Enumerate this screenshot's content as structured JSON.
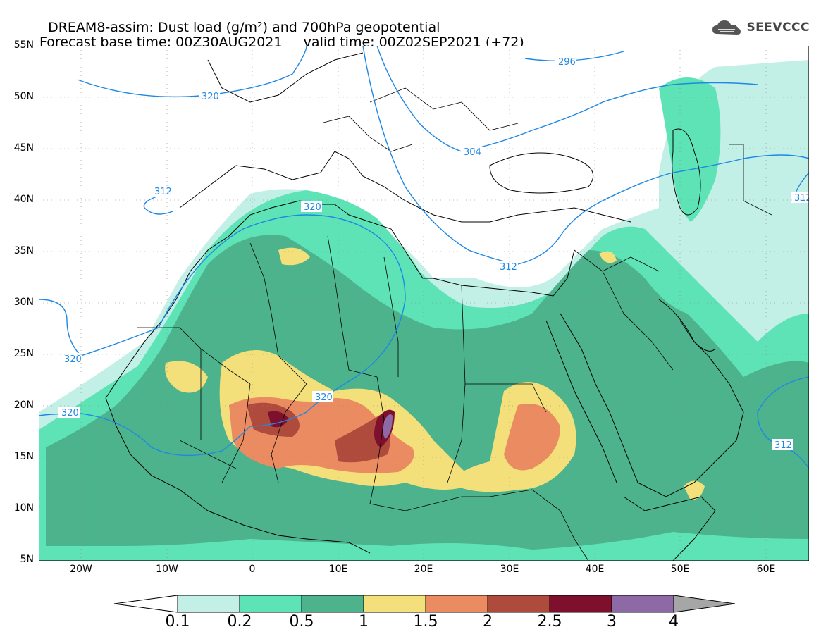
{
  "header": {
    "title_line1": "DREAM8-assim: Dust load (g/m²) and 700hPa geopotential",
    "title_line2": "Forecast base time: 00Z30AUG2021     valid time: 00Z02SEP2021 (+72)",
    "logo_text": "SEEVCCC",
    "logo_icon": "cloud-icon"
  },
  "map": {
    "lat_labels": [
      "55N",
      "50N",
      "45N",
      "40N",
      "35N",
      "30N",
      "25N",
      "20N",
      "15N",
      "10N",
      "5N"
    ],
    "lon_labels": [
      "20W",
      "10W",
      "0",
      "10E",
      "20E",
      "30E",
      "40E",
      "50E",
      "60E"
    ],
    "contour_labels": [
      "296",
      "320",
      "304",
      "312",
      "320",
      "312",
      "320",
      "320",
      "320",
      "312",
      "312"
    ],
    "colors": {
      "level_01": "#c2efe6",
      "level_02": "#5ee3b7",
      "level_05": "#4db38d",
      "level_1": "#f4e07a",
      "level_15": "#eb8b62",
      "level_2": "#ae4b3c",
      "level_25": "#7e0f2d",
      "level_3": "#8d6aa5",
      "level_4": "#a6a6a6",
      "contour": "#1e88e5"
    }
  },
  "colorbar": {
    "labels": [
      "0.1",
      "0.2",
      "0.5",
      "1",
      "1.5",
      "2",
      "2.5",
      "3",
      "4"
    ]
  }
}
